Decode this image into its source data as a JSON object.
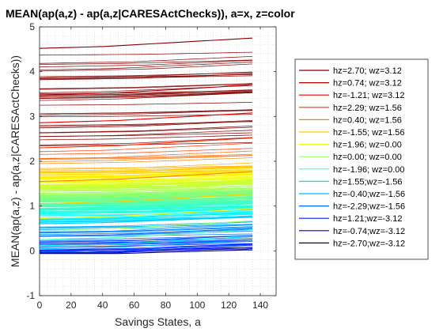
{
  "chart_data": {
    "type": "line",
    "title": "MEAN(ap(a,z) - ap(a,z|CARESActChecks)), a=x, z=color",
    "xlabel": "Savings States, a",
    "ylabel": "MEAN(ap(a,z) - ap(a,z|CARESActChecks))",
    "xlim": [
      0,
      150
    ],
    "ylim": [
      -1,
      5
    ],
    "xticks": [
      "0",
      "20",
      "40",
      "60",
      "80",
      "100",
      "120",
      "140"
    ],
    "yticks": [
      "-1",
      "0",
      "1",
      "2",
      "3",
      "4",
      "5"
    ],
    "grid": "dotted minor grid",
    "legend_position": "right, outside plot",
    "x": [
      0,
      10,
      20,
      30,
      40,
      50,
      60,
      70,
      80,
      90,
      100,
      110,
      120,
      130,
      135
    ],
    "series": [
      {
        "name": "hz=2.70; wz=3.12",
        "color": "#800000",
        "values": [
          4.52,
          4.53,
          4.54,
          4.55,
          4.56,
          4.58,
          4.6,
          4.62,
          4.64,
          4.66,
          4.68,
          4.7,
          4.72,
          4.74,
          4.75
        ]
      },
      {
        "name": "hz=0.74; wz=3.12",
        "color": "#b30000",
        "values": [
          3.48,
          3.49,
          3.5,
          3.51,
          3.52,
          3.53,
          3.55,
          3.57,
          3.59,
          3.61,
          3.63,
          3.65,
          3.68,
          3.7,
          3.72
        ]
      },
      {
        "name": "hz=-1.21; wz=3.12",
        "color": "#e60000",
        "values": [
          2.86,
          2.87,
          2.88,
          2.89,
          2.9,
          2.91,
          2.93,
          2.95,
          2.97,
          2.99,
          3.01,
          3.03,
          3.05,
          3.07,
          3.08
        ]
      },
      {
        "name": "hz=2.29; wz=1.56",
        "color": "#ff3300",
        "values": [
          2.3,
          2.31,
          2.32,
          2.33,
          2.34,
          2.35,
          2.37,
          2.39,
          2.41,
          2.43,
          2.45,
          2.47,
          2.49,
          2.51,
          2.52
        ]
      },
      {
        "name": "hz=0.40; wz=1.56",
        "color": "#ff8000",
        "values": [
          1.55,
          1.56,
          1.57,
          1.58,
          1.59,
          1.6,
          1.62,
          1.64,
          1.66,
          1.68,
          1.7,
          1.72,
          1.74,
          1.76,
          1.77
        ]
      },
      {
        "name": "hz=-1.55; wz=1.56",
        "color": "#ffcc00",
        "values": [
          1.05,
          1.06,
          1.07,
          1.08,
          1.09,
          1.1,
          1.12,
          1.14,
          1.16,
          1.18,
          1.2,
          1.22,
          1.24,
          1.26,
          1.27
        ]
      },
      {
        "name": "hz=1.96; wz=0.00",
        "color": "#e6ff1a",
        "values": [
          0.72,
          0.73,
          0.74,
          0.75,
          0.76,
          0.77,
          0.79,
          0.81,
          0.83,
          0.85,
          0.87,
          0.89,
          0.91,
          0.93,
          0.94
        ]
      },
      {
        "name": "hz=0.00; wz=0.00",
        "color": "#99ff66",
        "values": [
          0.45,
          0.46,
          0.47,
          0.48,
          0.49,
          0.5,
          0.52,
          0.54,
          0.56,
          0.58,
          0.6,
          0.62,
          0.64,
          0.66,
          0.67
        ]
      },
      {
        "name": "hz=-1.96; wz=0.00",
        "color": "#4dffb3",
        "values": [
          0.25,
          0.26,
          0.27,
          0.28,
          0.29,
          0.3,
          0.32,
          0.34,
          0.36,
          0.38,
          0.4,
          0.42,
          0.44,
          0.46,
          0.47
        ]
      },
      {
        "name": "hz=1.55;wz=-1.56",
        "color": "#00e6e6",
        "values": [
          0.12,
          0.12,
          0.13,
          0.13,
          0.14,
          0.15,
          0.17,
          0.19,
          0.21,
          0.23,
          0.25,
          0.27,
          0.29,
          0.31,
          0.32
        ]
      },
      {
        "name": "hz=-0.40;wz=-1.56",
        "color": "#00b3ff",
        "values": [
          0.05,
          0.05,
          0.06,
          0.06,
          0.07,
          0.08,
          0.1,
          0.12,
          0.14,
          0.16,
          0.18,
          0.19,
          0.2,
          0.21,
          0.22
        ]
      },
      {
        "name": "hz=-2.29;wz=-1.56",
        "color": "#0066ff",
        "values": [
          -0.02,
          -0.02,
          -0.02,
          -0.01,
          -0.01,
          0.0,
          0.02,
          0.04,
          0.06,
          0.08,
          0.1,
          0.11,
          0.12,
          0.13,
          0.14
        ]
      },
      {
        "name": "hz=1.21;wz=-3.12",
        "color": "#0019ff",
        "values": [
          -0.04,
          -0.04,
          -0.04,
          -0.04,
          -0.03,
          -0.02,
          0.0,
          0.02,
          0.03,
          0.04,
          0.05,
          0.06,
          0.07,
          0.07,
          0.08
        ]
      },
      {
        "name": "hz=-0.74;wz=-3.12",
        "color": "#0000cc",
        "values": [
          -0.05,
          -0.05,
          -0.05,
          -0.05,
          -0.05,
          -0.04,
          -0.02,
          -0.01,
          0.0,
          0.01,
          0.02,
          0.03,
          0.04,
          0.04,
          0.05
        ]
      },
      {
        "name": "hz=-2.70;wz=-3.12",
        "color": "#000080",
        "values": [
          -0.06,
          -0.06,
          -0.06,
          -0.06,
          -0.06,
          -0.06,
          -0.05,
          -0.04,
          -0.03,
          -0.02,
          -0.01,
          0.0,
          0.01,
          0.02,
          0.02
        ]
      }
    ],
    "background_band": {
      "description": "hundreds of unlabeled jet-colored lines between -0.05 and 4.75, densest red band between 0.9 and 1.8",
      "ymin": -0.05,
      "ymax": 4.75,
      "density_center": 1.3
    }
  }
}
